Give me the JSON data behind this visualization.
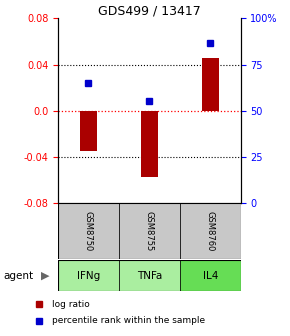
{
  "title": "GDS499 / 13417",
  "categories": [
    "IFNg",
    "TNFa",
    "IL4"
  ],
  "gsm_labels": [
    "GSM8750",
    "GSM8755",
    "GSM8760"
  ],
  "log_ratios": [
    -0.035,
    -0.057,
    0.046
  ],
  "percentile_ranks": [
    0.65,
    0.555,
    0.865
  ],
  "ylim_left": [
    -0.08,
    0.08
  ],
  "ylim_right": [
    0.0,
    1.0
  ],
  "yticks_left": [
    -0.08,
    -0.04,
    0.0,
    0.04,
    0.08
  ],
  "yticks_right_vals": [
    0,
    0.25,
    0.5,
    0.75,
    1.0
  ],
  "ytick_labels_right": [
    "0",
    "25",
    "50",
    "75",
    "100%"
  ],
  "bar_color": "#aa0000",
  "dot_color": "#0000cc",
  "gsm_box_color": "#c8c8c8",
  "agent_box_color_light": "#aaeea0",
  "agent_box_color_dark": "#66dd55",
  "bar_width": 0.28,
  "figsize": [
    2.9,
    3.36
  ],
  "dpi": 100,
  "legend_items": [
    "log ratio",
    "percentile rank within the sample"
  ]
}
